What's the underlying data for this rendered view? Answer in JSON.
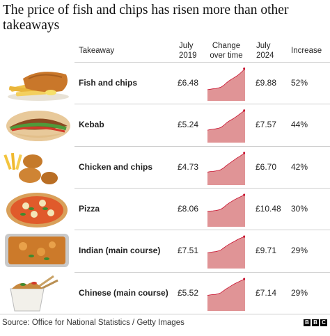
{
  "title": "The price of fish and chips has risen more than other takeaways",
  "headers": {
    "takeaway": "Takeaway",
    "july2019_line1": "July",
    "july2019_line2": "2019",
    "change_line1": "Change",
    "change_line2": "over time",
    "july2024_line1": "July",
    "july2024_line2": "2024",
    "increase": "Increase"
  },
  "chart_data": {
    "type": "table",
    "columns": [
      "Takeaway",
      "July 2019",
      "Change over time",
      "July 2024",
      "Increase"
    ],
    "rows": [
      {
        "name": "Fish and chips",
        "july_2019": "£6.48",
        "july_2024": "£9.88",
        "increase": "52%",
        "value_2019": 6.48,
        "value_2024": 9.88,
        "image_icon": "fish-and-chips-photo"
      },
      {
        "name": "Kebab",
        "july_2019": "£5.24",
        "july_2024": "£7.57",
        "increase": "44%",
        "value_2019": 5.24,
        "value_2024": 7.57,
        "image_icon": "kebab-photo"
      },
      {
        "name": "Chicken and chips",
        "july_2019": "£4.73",
        "july_2024": "£6.70",
        "increase": "42%",
        "value_2019": 4.73,
        "value_2024": 6.7,
        "image_icon": "chicken-and-chips-photo"
      },
      {
        "name": "Pizza",
        "july_2019": "£8.06",
        "july_2024": "£10.48",
        "increase": "30%",
        "value_2019": 8.06,
        "value_2024": 10.48,
        "image_icon": "pizza-photo"
      },
      {
        "name": "Indian (main course)",
        "july_2019": "£7.51",
        "july_2024": "£9.71",
        "increase": "29%",
        "value_2019": 7.51,
        "value_2024": 9.71,
        "image_icon": "curry-tray-photo"
      },
      {
        "name": "Chinese (main course)",
        "july_2019": "£5.52",
        "july_2024": "£7.14",
        "increase": "29%",
        "value_2019": 5.52,
        "value_2024": 7.14,
        "image_icon": "chinese-takeaway-box-photo"
      }
    ],
    "sparkline_color": "#e09496",
    "sparkline_line_color": "#c8102e"
  },
  "footer": {
    "source": "Source: Office for National Statistics / Getty Images",
    "logo_letters": [
      "B",
      "B",
      "C"
    ]
  }
}
